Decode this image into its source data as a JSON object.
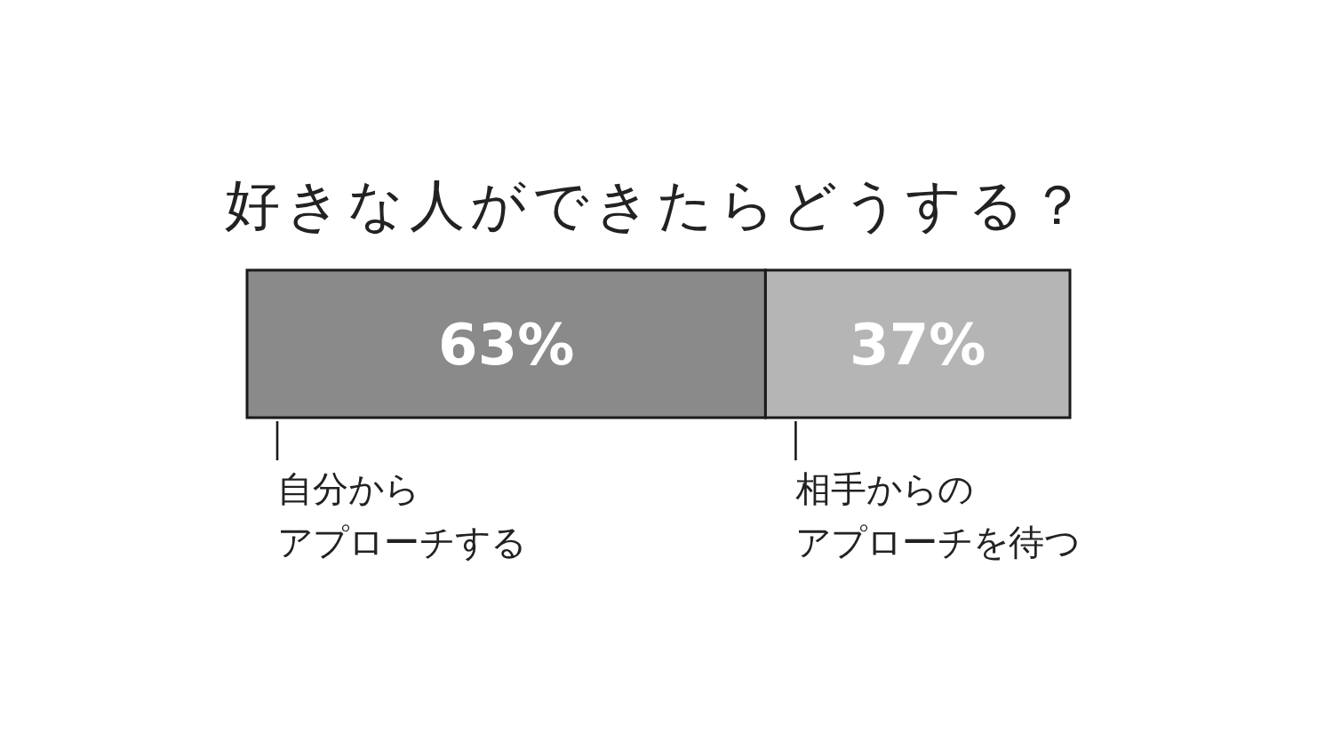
{
  "chart_data": {
    "type": "bar",
    "title": "好きな人ができたらどうする？",
    "orientation": "horizontal",
    "stacked": true,
    "categories": [
      null
    ],
    "xlim": [
      0,
      100
    ],
    "tick_labels": false,
    "legend": "bottom",
    "series": [
      {
        "name": "自分からアプローチする",
        "color": "#8a8a8a",
        "values": [
          63
        ],
        "value_labels": [
          "63%"
        ]
      },
      {
        "name": "相手からのアプローチを待つ",
        "color": "#b5b5b5",
        "values": [
          37
        ],
        "value_labels": [
          "37%"
        ]
      }
    ]
  }
}
